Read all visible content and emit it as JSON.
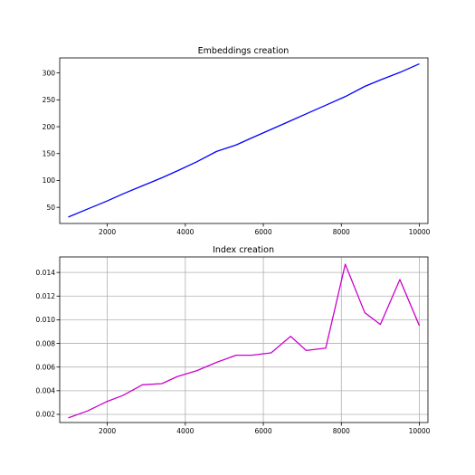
{
  "chart_data": [
    {
      "type": "line",
      "title": "Embeddings creation",
      "xlabel": "",
      "ylabel": "",
      "xlim": [
        780,
        10220
      ],
      "ylim": [
        20,
        328
      ],
      "xticks": [
        2000,
        4000,
        6000,
        8000,
        10000
      ],
      "yticks": [
        50,
        100,
        150,
        200,
        250,
        300
      ],
      "grid": false,
      "series": [
        {
          "color": "#0000ff",
          "x": [
            1000,
            1500,
            2000,
            2400,
            2900,
            3400,
            3800,
            4300,
            4800,
            5300,
            5700,
            6200,
            6700,
            7100,
            7600,
            8100,
            8600,
            9000,
            9500,
            10000
          ],
          "y": [
            32,
            47,
            62,
            75,
            90,
            105,
            118,
            135,
            154,
            166,
            179,
            195,
            211,
            224,
            240,
            256,
            275,
            287,
            301,
            317
          ]
        }
      ]
    },
    {
      "type": "line",
      "title": "Index creation",
      "xlabel": "",
      "ylabel": "",
      "xlim": [
        780,
        10220
      ],
      "ylim": [
        0.00131,
        0.01531
      ],
      "xticks": [
        2000,
        4000,
        6000,
        8000,
        10000
      ],
      "yticks": [
        0.002,
        0.004,
        0.006,
        0.008,
        0.01,
        0.012,
        0.014
      ],
      "ytick_labels": [
        "0.002",
        "0.004",
        "0.006",
        "0.008",
        "0.010",
        "0.012",
        "0.014"
      ],
      "grid": true,
      "series": [
        {
          "color": "#cc00cc",
          "x": [
            1000,
            1500,
            2000,
            2400,
            2900,
            3400,
            3800,
            4300,
            4800,
            5300,
            5700,
            6200,
            6700,
            7100,
            7600,
            8100,
            8600,
            9000,
            9500,
            10000
          ],
          "y": [
            0.0017,
            0.0023,
            0.0031,
            0.0036,
            0.0045,
            0.0046,
            0.0052,
            0.0057,
            0.0064,
            0.007,
            0.007,
            0.0072,
            0.0086,
            0.0074,
            0.0076,
            0.0147,
            0.0106,
            0.0096,
            0.0134,
            0.0095
          ]
        }
      ]
    }
  ]
}
